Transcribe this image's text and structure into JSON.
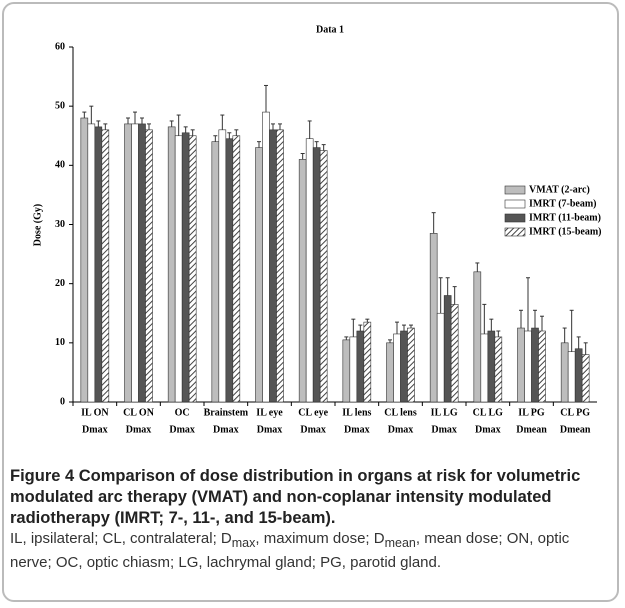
{
  "chart_data": {
    "type": "bar",
    "title": "Data 1",
    "ylabel": "Dose (Gy)",
    "categories": [
      [
        "IL ON",
        "Dmax"
      ],
      [
        "CL ON",
        "Dmax"
      ],
      [
        "OC",
        "Dmax"
      ],
      [
        "Brainstem",
        "Dmax"
      ],
      [
        "IL eye",
        "Dmax"
      ],
      [
        "CL eye",
        "Dmax"
      ],
      [
        "IL lens",
        "Dmax"
      ],
      [
        "CL lens",
        "Dmax"
      ],
      [
        "IL LG",
        "Dmax"
      ],
      [
        "CL LG",
        "Dmax"
      ],
      [
        "IL PG",
        "Dmean"
      ],
      [
        "CL PG",
        "Dmean"
      ]
    ],
    "series": [
      {
        "name": "VMAT (2-arc)",
        "color": "#bdbdbd",
        "values": [
          48,
          47,
          46.5,
          44,
          43,
          41,
          10.5,
          10,
          28.5,
          22,
          12.5,
          10
        ],
        "errors": [
          1,
          1,
          1,
          1,
          1,
          1,
          0.5,
          0.5,
          3.5,
          1.5,
          3,
          2.5
        ]
      },
      {
        "name": "IMRT (7-beam)",
        "color": "#ffffff",
        "values": [
          47,
          47,
          45,
          46,
          49,
          44.5,
          11,
          11.5,
          15,
          11.5,
          12,
          8.5
        ],
        "errors": [
          3,
          2,
          3.5,
          2.5,
          4.5,
          3,
          3,
          2,
          6,
          5,
          9,
          7
        ]
      },
      {
        "name": "IMRT (11-beam)",
        "color": "#555555",
        "values": [
          46.5,
          47,
          45.5,
          44.5,
          46,
          43,
          12,
          12,
          18,
          12,
          12.5,
          9
        ],
        "errors": [
          1,
          1,
          1,
          1,
          1,
          1,
          1,
          1,
          3,
          2,
          3,
          2
        ]
      },
      {
        "name": "IMRT (15-beam)",
        "color": "#888888",
        "hatch": true,
        "values": [
          46,
          46,
          45,
          45,
          46,
          42.5,
          13.5,
          12.5,
          16.5,
          11,
          12,
          8
        ],
        "errors": [
          1,
          1,
          1,
          1,
          1,
          1,
          0.5,
          0.5,
          3,
          1,
          2.5,
          2
        ]
      }
    ],
    "ylim": [
      0,
      60
    ],
    "yticks": [
      0,
      10,
      20,
      30,
      40,
      50,
      60
    ],
    "grid": false,
    "legend": "upper right"
  },
  "caption": {
    "title": "Figure 4 Comparison of dose distribution in organs at risk for volumetric modulated arc therapy (VMAT) and non-coplanar intensity modulated radiotherapy (IMRT; 7-, 11-, and 15-beam).",
    "body": [
      "IL, ipsilateral; CL, contralateral; D",
      "max",
      ", maximum dose; D",
      "mean",
      ", mean dose; ON, optic nerve; OC, optic chiasm; LG, lachrymal gland; PG, parotid gland."
    ]
  }
}
